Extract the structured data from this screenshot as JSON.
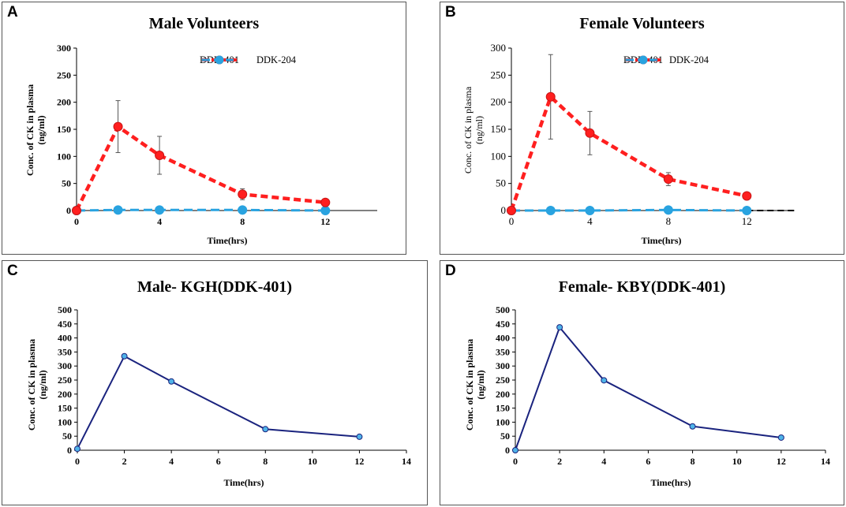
{
  "chart_data": [
    {
      "panel": "A",
      "type": "line",
      "title": "Male Volunteers",
      "ylabel_line1": "Conc. of CK in plasma",
      "ylabel_line2": "(ng/ml)",
      "xlabel": "Time(hrs)",
      "x_ticks": [
        0,
        4,
        8,
        12
      ],
      "y_ticks": [
        0,
        50,
        100,
        150,
        200,
        250,
        300
      ],
      "xlim": [
        0,
        14.5
      ],
      "ylim": [
        0,
        300
      ],
      "legend": "top-right",
      "series": [
        {
          "name": "DDK-401",
          "color": "#ff1f1f",
          "style": "dashed",
          "x": [
            0,
            2,
            4,
            8,
            12
          ],
          "values": [
            0,
            155,
            102,
            30,
            15
          ],
          "error": [
            0,
            48,
            35,
            10,
            3
          ]
        },
        {
          "name": "DDK-204",
          "color": "#29a3e0",
          "style": "dashed",
          "x": [
            0,
            2,
            4,
            8,
            12
          ],
          "values": [
            0,
            1,
            1,
            1,
            0
          ]
        }
      ]
    },
    {
      "panel": "B",
      "type": "line",
      "title": "Female Volunteers",
      "ylabel_line1": "Conc. of CK in plasma",
      "ylabel_line2": "(ng/ml)",
      "xlabel": "Time(hrs)",
      "x_ticks": [
        0,
        4,
        8,
        12
      ],
      "y_ticks": [
        0,
        50,
        100,
        150,
        200,
        250,
        300
      ],
      "xlim": [
        0,
        14.2
      ],
      "ylim": [
        0,
        300
      ],
      "legend": "top-right",
      "series": [
        {
          "name": "DDK-401",
          "color": "#ff1f1f",
          "style": "dashed",
          "x": [
            0,
            2,
            4,
            8,
            12
          ],
          "values": [
            0,
            210,
            143,
            58,
            27
          ],
          "error": [
            0,
            78,
            40,
            12,
            5
          ]
        },
        {
          "name": "DDK-204",
          "color": "#29a3e0",
          "style": "dashed",
          "x": [
            0,
            2,
            4,
            8,
            12
          ],
          "values": [
            0,
            0,
            0,
            1,
            0
          ]
        }
      ]
    },
    {
      "panel": "C",
      "type": "line",
      "title": "Male- KGH(DDK-401)",
      "ylabel_line1": "Conc. of CK in plasma",
      "ylabel_line2": "(ng/ml)",
      "xlabel": "Time(hrs)",
      "x_ticks": [
        0,
        2,
        4,
        6,
        8,
        10,
        12,
        14
      ],
      "y_ticks": [
        0,
        50,
        100,
        150,
        200,
        250,
        300,
        350,
        400,
        450,
        500
      ],
      "xlim": [
        0,
        14
      ],
      "ylim": [
        0,
        500
      ],
      "series": [
        {
          "name": "DDK-401",
          "color": "#1a237e",
          "marker_color": "#4fb3e8",
          "style": "solid",
          "x": [
            0,
            2,
            4,
            8,
            12
          ],
          "values": [
            5,
            335,
            245,
            75,
            48
          ]
        }
      ]
    },
    {
      "panel": "D",
      "type": "line",
      "title": "Female- KBY(DDK-401)",
      "ylabel_line1": "Conc. of CK in plasma",
      "ylabel_line2": "(ng/ml)",
      "xlabel": "Time(hrs)",
      "x_ticks": [
        0,
        2,
        4,
        6,
        8,
        10,
        12,
        14
      ],
      "y_ticks": [
        0,
        50,
        100,
        150,
        200,
        250,
        300,
        350,
        400,
        450,
        500
      ],
      "xlim": [
        0,
        14
      ],
      "ylim": [
        0,
        500
      ],
      "series": [
        {
          "name": "DDK-401",
          "color": "#1a237e",
          "marker_color": "#4fb3e8",
          "style": "solid",
          "x": [
            0,
            2,
            4,
            8,
            12
          ],
          "values": [
            0,
            438,
            249,
            85,
            45
          ]
        }
      ]
    }
  ]
}
